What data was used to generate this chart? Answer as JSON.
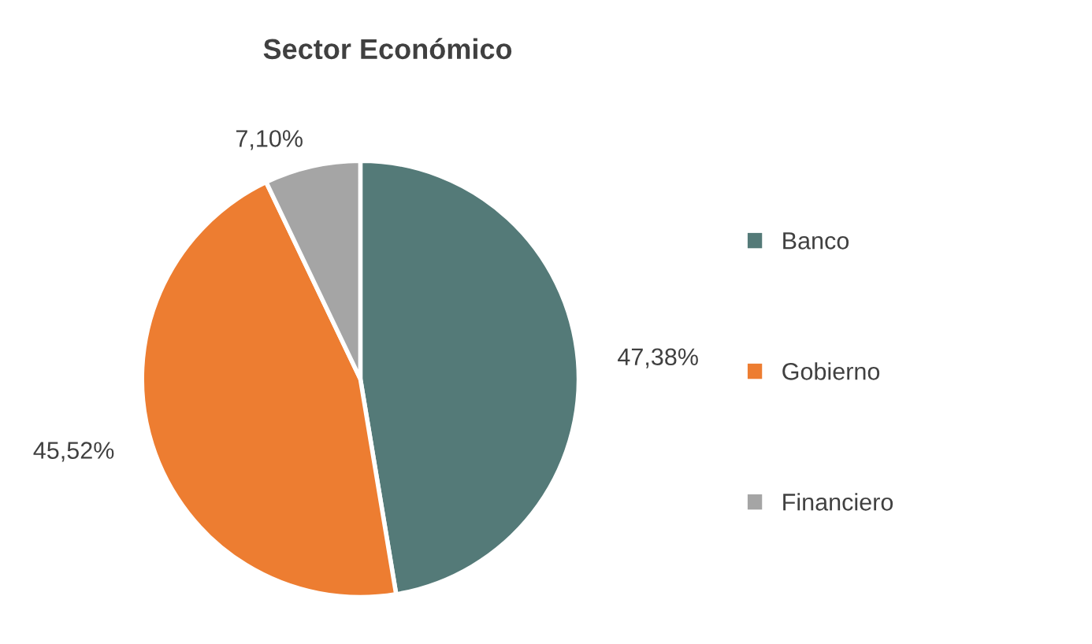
{
  "chart_data": {
    "type": "pie",
    "title": "Sector Económico",
    "categories": [
      "Banco",
      "Gobierno",
      "Financiero"
    ],
    "values": [
      47.38,
      45.52,
      7.1
    ],
    "value_labels": [
      "47,38%",
      "45,52%",
      "7,10%"
    ],
    "colors": [
      "#547a78",
      "#ed7d31",
      "#a5a5a5"
    ],
    "legend": "right"
  }
}
